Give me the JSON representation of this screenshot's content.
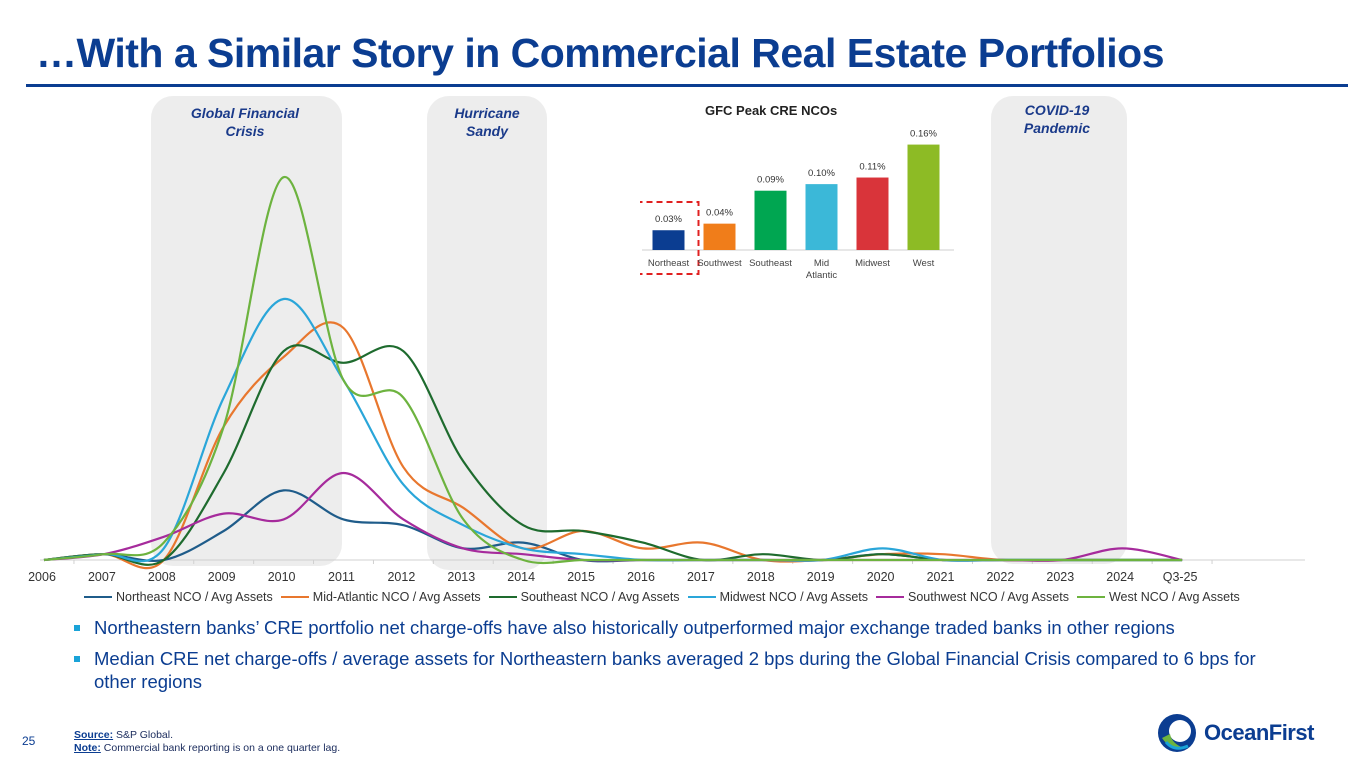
{
  "title": "…With a Similar Story in Commercial Real Estate Portfolios",
  "shaded_periods": [
    {
      "label": "Global Financial Crisis",
      "lines": [
        "Global Financial",
        "Crisis"
      ]
    },
    {
      "label": "Hurricane Sandy",
      "lines": [
        "Hurricane",
        "Sandy"
      ]
    },
    {
      "label": "COVID-19 Pandemic",
      "lines": [
        "COVID-19",
        "Pandemic"
      ]
    }
  ],
  "chart_data": [
    {
      "type": "line",
      "title": "",
      "xlabel": "",
      "ylabel": "",
      "grid": false,
      "legend_position": "bottom",
      "x": [
        "2006",
        "2007",
        "2008",
        "2009",
        "2010",
        "2011",
        "2012",
        "2013",
        "2014",
        "2015",
        "2016",
        "2017",
        "2018",
        "2019",
        "2020",
        "2021",
        "2022",
        "2023",
        "2024",
        "Q3-25"
      ],
      "ylim": [
        0,
        0.8
      ],
      "series": [
        {
          "name": "Northeast NCO / Avg Assets",
          "color": "#1f5c8a",
          "values": [
            0.0,
            0.01,
            0.0,
            0.05,
            0.12,
            0.07,
            0.06,
            0.02,
            0.03,
            0.0,
            0.0,
            0.0,
            0.0,
            0.0,
            0.01,
            0.0,
            0.0,
            0.0,
            0.0,
            0.0
          ]
        },
        {
          "name": "Mid-Atlantic NCO / Avg Assets",
          "color": "#e8772e",
          "values": [
            0.0,
            0.01,
            0.0,
            0.23,
            0.35,
            0.4,
            0.16,
            0.09,
            0.02,
            0.05,
            0.02,
            0.03,
            0.0,
            0.0,
            0.01,
            0.01,
            0.0,
            0.0,
            0.0,
            0.0
          ]
        },
        {
          "name": "Southeast NCO / Avg Assets",
          "color": "#1e6b2e",
          "values": [
            0.0,
            0.01,
            0.0,
            0.15,
            0.36,
            0.34,
            0.36,
            0.17,
            0.06,
            0.05,
            0.03,
            0.0,
            0.01,
            0.0,
            0.01,
            0.0,
            0.0,
            0.0,
            0.0,
            0.0
          ]
        },
        {
          "name": "Midwest NCO / Avg Assets",
          "color": "#2aa6d9",
          "values": [
            0.0,
            0.01,
            0.02,
            0.28,
            0.45,
            0.31,
            0.13,
            0.06,
            0.02,
            0.01,
            0.0,
            0.0,
            0.0,
            0.0,
            0.02,
            0.0,
            0.0,
            0.0,
            0.0,
            0.0
          ]
        },
        {
          "name": "Southwest NCO / Avg Assets",
          "color": "#a62b9c",
          "values": [
            0.0,
            0.01,
            0.04,
            0.08,
            0.07,
            0.15,
            0.07,
            0.02,
            0.01,
            0.0,
            0.0,
            0.0,
            0.0,
            0.0,
            0.0,
            0.0,
            0.0,
            0.0,
            0.02,
            0.0
          ]
        },
        {
          "name": "West NCO / Avg Assets",
          "color": "#6db33f",
          "values": [
            0.0,
            0.01,
            0.03,
            0.23,
            0.66,
            0.31,
            0.28,
            0.07,
            0.0,
            0.0,
            0.0,
            0.0,
            0.0,
            0.0,
            0.0,
            0.0,
            0.0,
            0.0,
            0.0,
            0.0
          ]
        }
      ]
    },
    {
      "type": "bar",
      "title": "GFC Peak CRE NCOs",
      "categories": [
        "Northeast",
        "Southwest",
        "Southeast",
        "Mid Atlantic",
        "Midwest",
        "West"
      ],
      "values": [
        0.03,
        0.04,
        0.09,
        0.1,
        0.11,
        0.16
      ],
      "labels": [
        "0.03%",
        "0.04%",
        "0.09%",
        "0.10%",
        "0.11%",
        "0.16%"
      ],
      "colors": [
        "#0b3d91",
        "#f07d1a",
        "#00a651",
        "#3bb8d8",
        "#d9343a",
        "#8dbb25"
      ],
      "ylim": [
        0,
        0.17
      ],
      "highlight": "Northeast"
    }
  ],
  "bullets": [
    "Northeastern banks’ CRE portfolio net charge-offs have also historically outperformed major exchange traded banks in other regions",
    "Median CRE net charge-offs / average assets for Northeastern banks averaged 2 bps during the Global Financial Crisis compared to 6 bps for other regions"
  ],
  "page_number": "25",
  "footnotes": {
    "source_label": "Source:",
    "source_text": "S&P Global.",
    "note_label": "Note:",
    "note_text": "Commercial bank reporting is on a one quarter lag."
  },
  "logo_text": "OceanFirst",
  "brand_color": "#0b3d91"
}
